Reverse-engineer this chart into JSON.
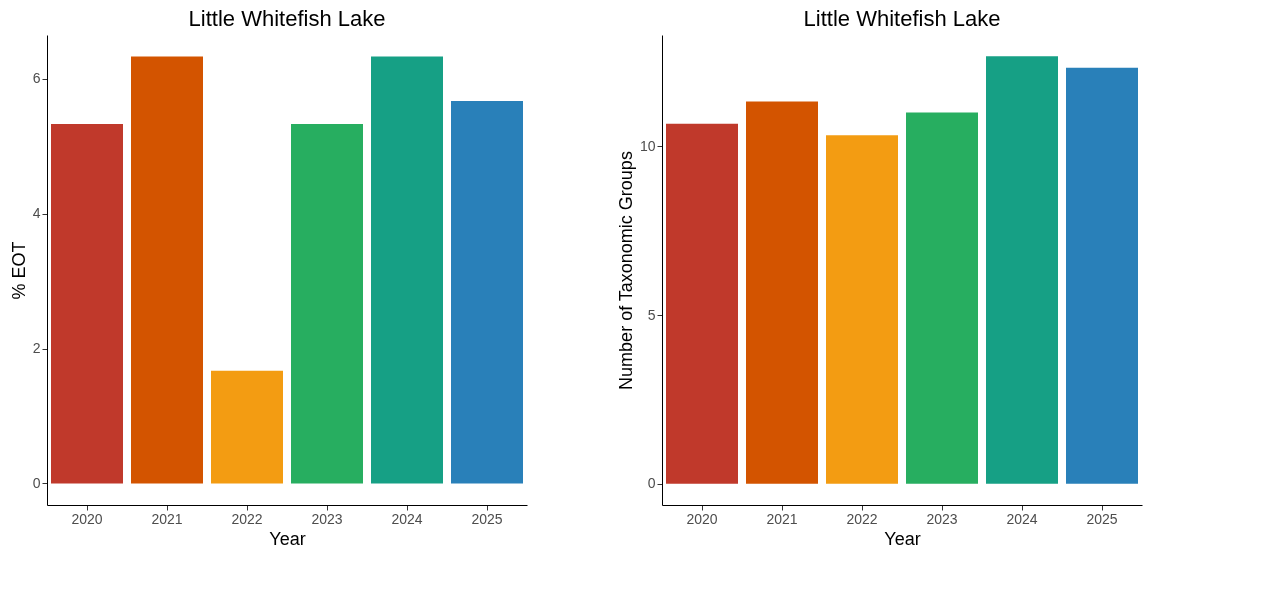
{
  "chart_data": [
    {
      "type": "bar",
      "title": "Little Whitefish Lake",
      "xlabel": "Year",
      "ylabel": "% EOT",
      "categories": [
        "2020",
        "2021",
        "2022",
        "2023",
        "2024",
        "2025"
      ],
      "values": [
        5.33,
        6.33,
        1.67,
        5.33,
        6.33,
        5.67
      ],
      "colors": [
        "#c0392b",
        "#d35400",
        "#f39c12",
        "#27ae60",
        "#16a085",
        "#2980b9"
      ],
      "ylim": [
        -0.32,
        6.65
      ],
      "yticks": [
        0,
        2,
        4,
        6
      ],
      "grid": false
    },
    {
      "type": "bar",
      "title": "Little Whitefish Lake",
      "xlabel": "Year",
      "ylabel": "Number of Taxonomic Groups",
      "categories": [
        "2020",
        "2021",
        "2022",
        "2023",
        "2024",
        "2025"
      ],
      "values": [
        10.67,
        11.33,
        10.33,
        11.0,
        12.67,
        12.33
      ],
      "colors": [
        "#c0392b",
        "#d35400",
        "#f39c12",
        "#27ae60",
        "#16a085",
        "#2980b9"
      ],
      "ylim": [
        -0.63,
        13.3
      ],
      "yticks": [
        0,
        5,
        10
      ],
      "grid": false
    }
  ]
}
